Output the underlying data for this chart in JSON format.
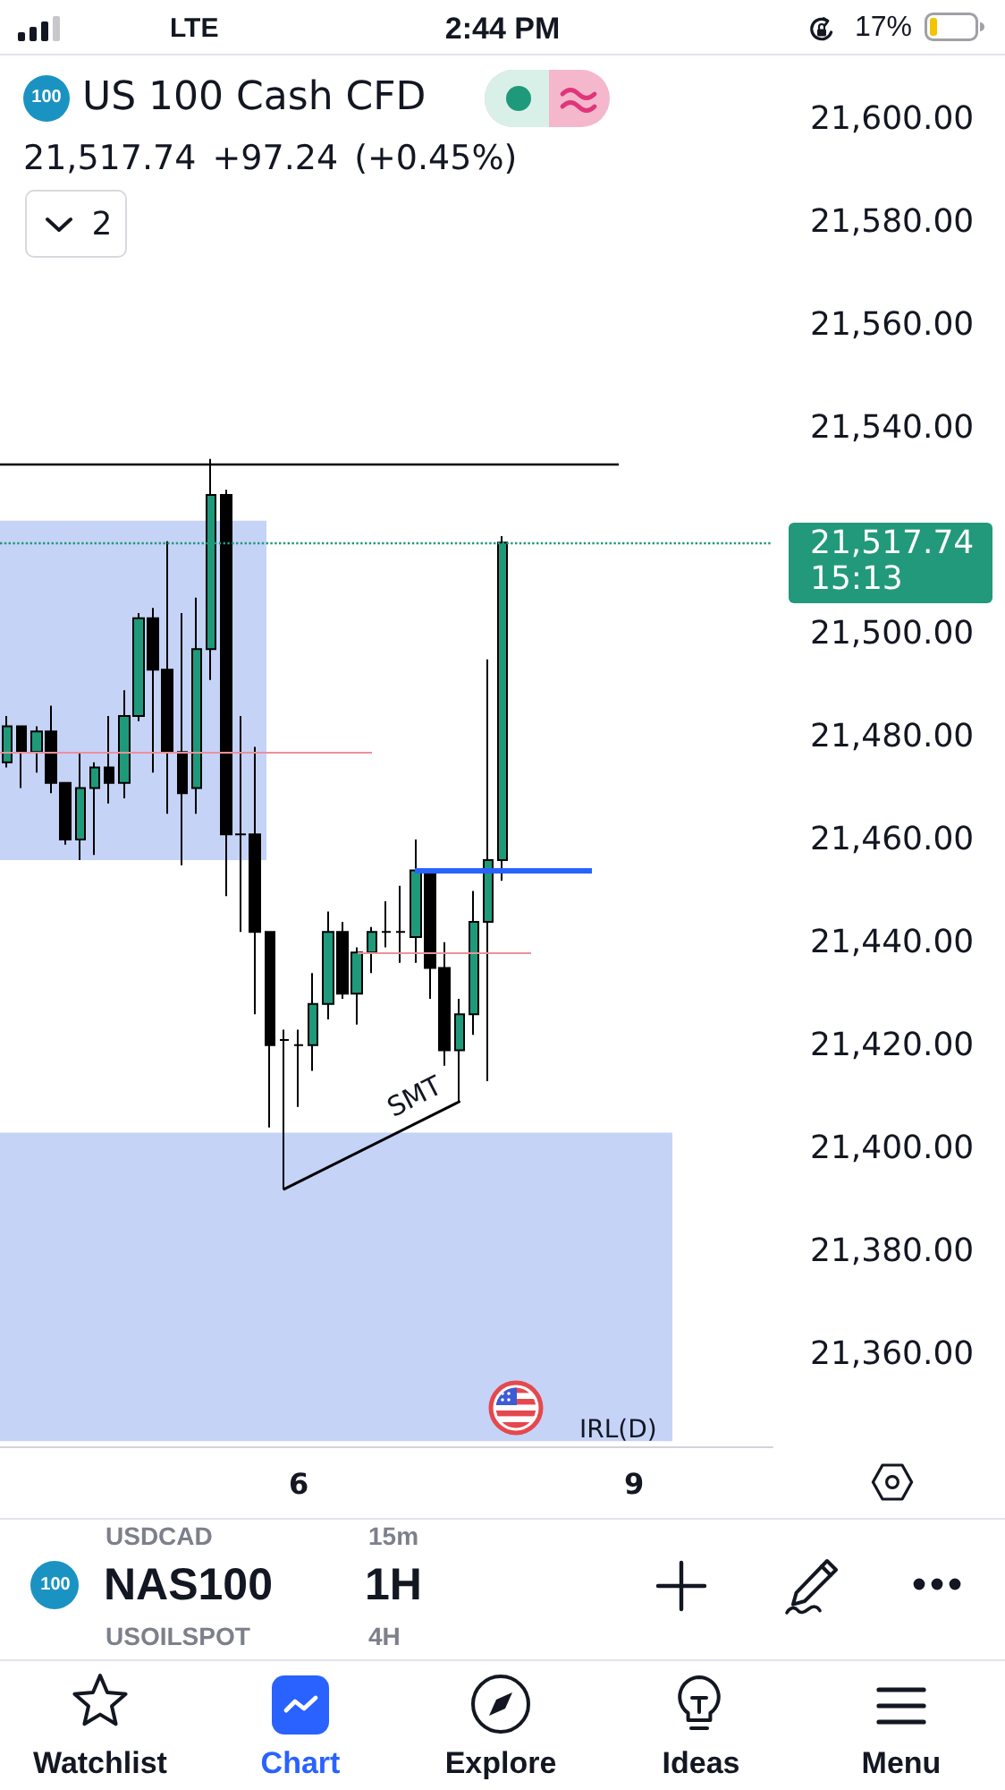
{
  "chart_data": {
    "type": "candlestick",
    "title": "US 100 Cash CFD",
    "subtitle": "21,517.74 +97.24 (+0.45%)",
    "categories": [
      null,
      null,
      null,
      null,
      null,
      null,
      null,
      null,
      null,
      null,
      null,
      null,
      null,
      null,
      null,
      null,
      null,
      null,
      null,
      null,
      "6",
      null,
      null,
      null,
      null,
      null,
      null,
      null,
      null,
      null,
      null,
      null,
      null,
      null,
      null,
      null,
      null,
      null,
      null,
      null,
      null,
      null,
      null,
      "9",
      null,
      null,
      null,
      null,
      null,
      null,
      null,
      null,
      null
    ],
    "series": [
      {
        "ohlc": [
          [
            21475,
            21484,
            21474,
            21482
          ],
          [
            21482,
            21482,
            21470,
            21477
          ],
          [
            21477,
            21482,
            21473,
            21481
          ],
          [
            21481,
            21486,
            21469,
            21471
          ],
          [
            21471,
            21471,
            21459,
            21460
          ],
          [
            21460,
            21477,
            21456,
            21470
          ],
          [
            21470,
            21475,
            21457,
            21474
          ],
          [
            21474,
            21484,
            21467,
            21471
          ],
          [
            21471,
            21489,
            21468,
            21484
          ],
          [
            21484,
            21504,
            21483,
            21503
          ],
          [
            21503,
            21505,
            21473,
            21493
          ],
          [
            21493,
            21518,
            21465,
            21477
          ],
          [
            21477,
            21504,
            21455,
            21469
          ],
          [
            21470,
            21507,
            21465,
            21497
          ],
          [
            21497,
            21534,
            21491,
            21527
          ],
          [
            21527,
            21528,
            21449,
            21461
          ],
          [
            21461,
            21484,
            21442,
            21461
          ],
          [
            21461,
            21478,
            21426,
            21442
          ],
          [
            21442,
            21442,
            21404,
            21420
          ],
          [
            21421,
            21423,
            21392,
            21421
          ],
          [
            21420,
            21423,
            21408,
            21420
          ],
          [
            21420,
            21434,
            21415,
            21428
          ],
          [
            21428,
            21446,
            21425,
            21442
          ],
          [
            21442,
            21444,
            21429,
            21430
          ],
          [
            21430,
            21439,
            21424,
            21438
          ],
          [
            21438,
            21443,
            21434,
            21442
          ],
          [
            21442,
            21448,
            21439,
            21442
          ],
          [
            21442,
            21451,
            21436,
            21442
          ],
          [
            21441,
            21460,
            21436,
            21454
          ],
          [
            21454,
            21454,
            21429,
            21435
          ],
          [
            21435,
            21440,
            21416,
            21419
          ],
          [
            21419,
            21429,
            21409,
            21426
          ],
          [
            21426,
            21450,
            21422,
            21444
          ],
          [
            21444,
            21495,
            21413,
            21456
          ],
          [
            21456,
            21519,
            21452,
            21517.74
          ],
          null,
          null,
          null,
          null,
          null,
          null,
          null,
          null,
          null,
          null,
          null,
          null,
          null,
          null,
          null,
          null,
          null,
          null
        ],
        "colors": [
          "#1e9a7a",
          "#000000",
          "#1e9a7a",
          "#000000",
          "#000000",
          "#1e9a7a",
          "#1e9a7a",
          "#000000",
          "#1e9a7a",
          "#1e9a7a",
          "#000000",
          "#000000",
          "#000000",
          "#1e9a7a",
          "#1e9a7a",
          "#000000",
          "#000000",
          "#000000",
          "#000000",
          "#000000",
          "#000000",
          "#1e9a7a",
          "#1e9a7a",
          "#000000",
          "#1e9a7a",
          "#1e9a7a",
          "#000000",
          "#000000",
          "#1e9a7a",
          "#000000",
          "#000000",
          "#1e9a7a",
          "#1e9a7a",
          "#1e9a7a",
          "#1e9a7a",
          null,
          null,
          null,
          null,
          null,
          null,
          null,
          null,
          null,
          null,
          null,
          null,
          null,
          null,
          null,
          null,
          null,
          null
        ]
      },
      {
        "type": "line",
        "color": "#000000",
        "values": [
          null,
          null,
          null,
          null,
          null,
          null,
          null,
          null,
          null,
          null,
          null,
          null,
          null,
          null,
          null,
          null,
          null,
          null,
          null,
          21392,
          null,
          null,
          null,
          null,
          null,
          null,
          null,
          null,
          null,
          null,
          null,
          21409,
          null,
          null,
          null,
          null,
          null,
          null,
          null,
          null,
          null,
          null,
          null,
          null,
          null,
          null,
          null,
          null,
          null,
          null,
          null,
          null,
          null
        ]
      }
    ],
    "ylim": [
      21342,
      21610
    ],
    "yticks": [
      {
        "value": 21360,
        "label": "21,360.00"
      },
      {
        "value": 21380,
        "label": "21,380.00"
      },
      {
        "value": 21400,
        "label": "21,400.00"
      },
      {
        "value": 21420,
        "label": "21,420.00"
      },
      {
        "value": 21440,
        "label": "21,440.00"
      },
      {
        "value": 21460,
        "label": "21,460.00"
      },
      {
        "value": 21480,
        "label": "21,480.00"
      },
      {
        "value": 21500,
        "label": "21,500.00"
      },
      {
        "value": 21540,
        "label": "21,540.00"
      },
      {
        "value": 21560,
        "label": "21,560.00"
      },
      {
        "value": 21580,
        "label": "21,580.00"
      },
      {
        "value": 21600,
        "label": "21,600.00"
      }
    ],
    "ref_lines": [
      {
        "axis": "y",
        "value": 21533,
        "color": "#000000"
      },
      {
        "axis": "y",
        "value": 21517.74,
        "label": "21,517.74",
        "color": "#22997a",
        "line_style": "dotted"
      },
      {
        "axis": "y",
        "value": 21477,
        "color": "#ef8f9b"
      },
      {
        "axis": "y",
        "value": 21438,
        "color": "#ef8f9b"
      },
      {
        "axis": "y",
        "value": 21454,
        "color": "#2962ff"
      }
    ],
    "bands": [
      {
        "axis": "y",
        "from": 21456,
        "to": 21522,
        "color": "#c5d3f7"
      },
      {
        "axis": "y",
        "from": 21343,
        "to": 21403,
        "color": "#c5d3f7"
      }
    ],
    "annotations": [
      "SMT",
      "IRL(D)",
      "15:13",
      "LTE",
      "2:44 PM",
      "17%",
      "100",
      "2",
      "USDCAD",
      "15m",
      "100",
      "NAS100",
      "1H",
      "USOILSPOT",
      "4H",
      "Watchlist",
      "Chart",
      "Explore",
      "Ideas",
      "Menu"
    ]
  }
}
